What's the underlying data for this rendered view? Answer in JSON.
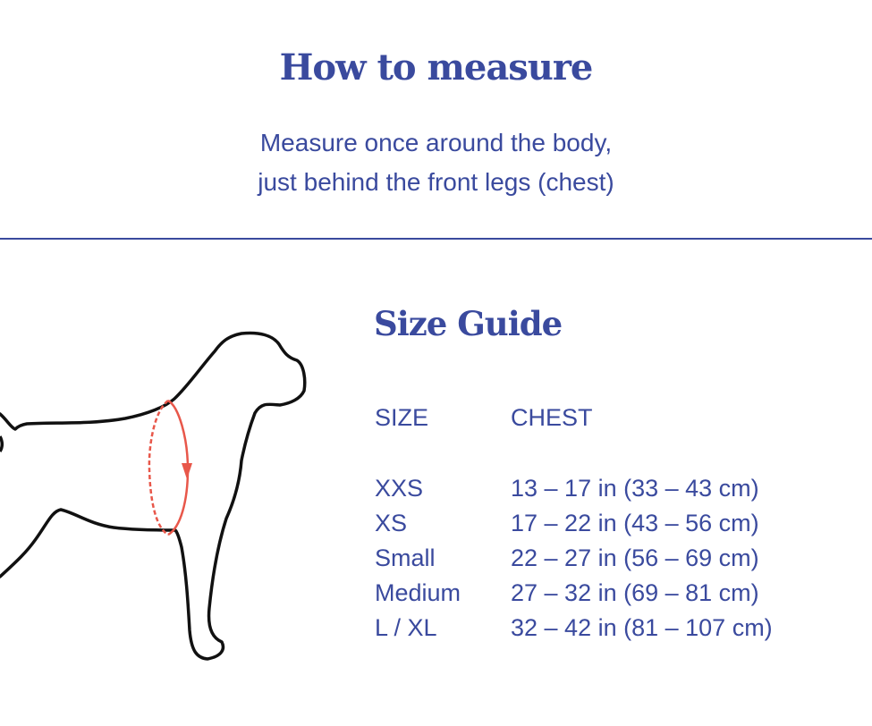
{
  "header": {
    "title": "How to measure",
    "subtitle_lines": [
      "Measure once around the body,",
      "just behind the front legs (chest)"
    ]
  },
  "colors": {
    "text": "#3a4a9e",
    "measure_line": "#e8574a",
    "outline": "#111111"
  },
  "illustration": {
    "icon": "dog-outline-chest-measurement-icon"
  },
  "size_guide": {
    "title": "Size Guide",
    "headers": [
      "SIZE",
      "CHEST"
    ],
    "rows": [
      {
        "size": "XXS",
        "chest": "13 – 17 in (33 – 43 cm)"
      },
      {
        "size": "XS",
        "chest": "17 – 22 in (43 – 56 cm)"
      },
      {
        "size": "Small",
        "chest": "22 – 27 in (56 – 69 cm)"
      },
      {
        "size": "Medium",
        "chest": "27 – 32 in (69 – 81 cm)"
      },
      {
        "size": "L / XL",
        "chest": "32 – 42 in (81 – 107 cm)"
      }
    ]
  }
}
